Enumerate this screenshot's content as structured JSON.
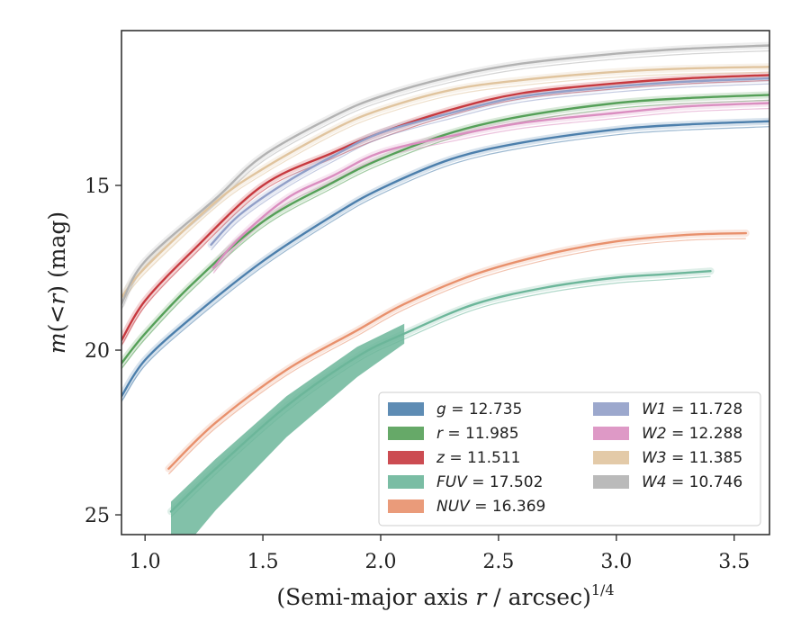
{
  "chart_data": {
    "type": "line",
    "xlabel": "(Semi-major axis r / arcsec)",
    "xlabel_parts": {
      "pre": "(Semi-major axis ",
      "var": "r",
      "post": " / arcsec)",
      "sup": "1/4"
    },
    "ylabel_parts": {
      "a": "m",
      "b": "(<",
      "c": "r",
      "d": ") (mag)"
    },
    "xlim": [
      0.9,
      3.65
    ],
    "ylim": [
      25.6,
      10.3
    ],
    "y_inverted": true,
    "xticks": [
      "1.0",
      "1.5",
      "2.0",
      "2.5",
      "3.0",
      "3.5"
    ],
    "yticks": [
      "15",
      "20",
      "25"
    ],
    "legend_position": "lower-right",
    "series": [
      {
        "name": "g",
        "value": "12.735",
        "color": "#4c7fac",
        "x": [
          0.9,
          1.0,
          1.2,
          1.5,
          1.8,
          2.0,
          2.3,
          2.6,
          3.0,
          3.3,
          3.65
        ],
        "y": [
          21.4,
          20.3,
          19.0,
          17.3,
          15.9,
          15.1,
          14.2,
          13.7,
          13.3,
          13.15,
          13.05
        ]
      },
      {
        "name": "r",
        "value": "11.985",
        "color": "#55a058",
        "x": [
          0.9,
          1.0,
          1.2,
          1.5,
          1.8,
          2.0,
          2.3,
          2.6,
          3.0,
          3.3,
          3.65
        ],
        "y": [
          20.4,
          19.5,
          18.0,
          16.1,
          14.9,
          14.2,
          13.4,
          12.9,
          12.5,
          12.35,
          12.25
        ]
      },
      {
        "name": "z",
        "value": "11.511",
        "color": "#c7393f",
        "x": [
          0.9,
          1.0,
          1.2,
          1.5,
          1.8,
          2.0,
          2.3,
          2.6,
          3.0,
          3.3,
          3.65
        ],
        "y": [
          19.7,
          18.5,
          17.0,
          15.0,
          14.0,
          13.4,
          12.7,
          12.2,
          11.9,
          11.75,
          11.65
        ]
      },
      {
        "name": "FUV",
        "value": "17.502",
        "color": "#6cb69a",
        "x": [
          1.11,
          1.3,
          1.6,
          1.9,
          2.1,
          2.4,
          2.7,
          3.0,
          3.2,
          3.4
        ],
        "y": [
          24.9,
          23.6,
          21.7,
          20.2,
          19.5,
          18.6,
          18.1,
          17.8,
          17.7,
          17.6
        ]
      },
      {
        "name": "NUV",
        "value": "16.369",
        "color": "#e8906c",
        "x": [
          1.1,
          1.3,
          1.6,
          1.9,
          2.1,
          2.4,
          2.7,
          3.0,
          3.3,
          3.55
        ],
        "y": [
          23.6,
          22.2,
          20.6,
          19.4,
          18.6,
          17.7,
          17.1,
          16.7,
          16.5,
          16.45
        ]
      },
      {
        "name": "W1",
        "value": "11.728",
        "color": "#919fc8",
        "x": [
          1.28,
          1.4,
          1.6,
          1.8,
          2.0,
          2.3,
          2.6,
          3.0,
          3.3,
          3.65
        ],
        "y": [
          16.8,
          15.9,
          14.9,
          14.1,
          13.4,
          12.8,
          12.3,
          12.0,
          11.85,
          11.75
        ]
      },
      {
        "name": "W2",
        "value": "12.288",
        "color": "#da8ec0",
        "x": [
          1.29,
          1.4,
          1.6,
          1.8,
          2.0,
          2.3,
          2.6,
          3.0,
          3.3,
          3.65
        ],
        "y": [
          17.5,
          16.6,
          15.4,
          14.7,
          14.0,
          13.5,
          13.1,
          12.8,
          12.6,
          12.5
        ]
      },
      {
        "name": "W3",
        "value": "11.385",
        "color": "#e0c49e",
        "x": [
          0.9,
          1.0,
          1.3,
          1.5,
          1.8,
          2.0,
          2.3,
          2.6,
          3.0,
          3.3,
          3.65
        ],
        "y": [
          18.4,
          17.5,
          15.5,
          14.5,
          13.3,
          12.7,
          12.1,
          11.8,
          11.55,
          11.45,
          11.4
        ]
      },
      {
        "name": "W4",
        "value": "10.746",
        "color": "#b2b2b2",
        "x": [
          0.9,
          1.0,
          1.3,
          1.5,
          1.8,
          2.0,
          2.3,
          2.6,
          3.0,
          3.3,
          3.65
        ],
        "y": [
          18.6,
          17.3,
          15.4,
          14.1,
          12.9,
          12.3,
          11.7,
          11.3,
          11.0,
          10.85,
          10.75
        ]
      }
    ]
  }
}
